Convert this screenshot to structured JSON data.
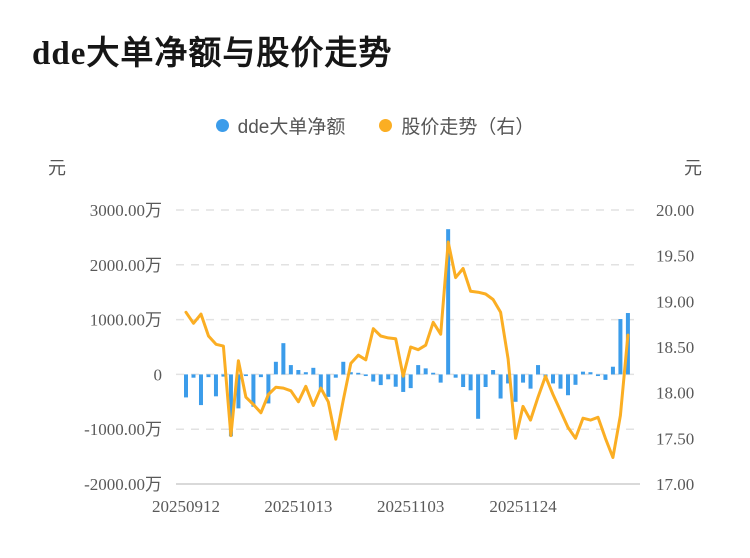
{
  "page": {
    "title": "dde大单净额与股价走势"
  },
  "legend": {
    "items": [
      {
        "label": "dde大单净额",
        "color": "#3b9cea",
        "marker": "circle"
      },
      {
        "label": "股价走势（右）",
        "color": "#fbae23",
        "marker": "circle"
      }
    ]
  },
  "axes": {
    "left_unit": "元",
    "right_unit": "元",
    "left_ticks": [
      "3000.00万",
      "2000.00万",
      "1000.00万",
      "0",
      "-1000.00万",
      "-2000.00万"
    ],
    "right_ticks": [
      "20.00",
      "19.50",
      "19.00",
      "18.50",
      "18.00",
      "17.50",
      "17.00"
    ],
    "x_ticks": [
      {
        "index": 0,
        "label": "20250912"
      },
      {
        "index": 15,
        "label": "20251013"
      },
      {
        "index": 30,
        "label": "20251103"
      },
      {
        "index": 45,
        "label": "20251124"
      }
    ]
  },
  "colors": {
    "bar": "#3b9cea",
    "line": "#fbae23",
    "grid": "#e2e2e2",
    "axis_line": "#d9d9d9",
    "tick_text": "#595959",
    "title_text": "#161616"
  },
  "chart_data": {
    "type": "bar+line dual-axis",
    "title": "dde大单净额与股价走势",
    "x_axis": "trading dates from 20250912 (labels every 15 sessions)",
    "left_axis": {
      "label": "元",
      "unit": "万 (10k yuan)",
      "range": [
        -2000,
        3000
      ],
      "grid": "dashed"
    },
    "right_axis": {
      "label": "元",
      "range": [
        17.0,
        20.0
      ]
    },
    "legend_position": "top-center",
    "series": [
      {
        "name": "dde大单净额",
        "type": "bar",
        "axis": "left",
        "unit": "万元",
        "values": [
          -420,
          -60,
          -560,
          -50,
          -400,
          -40,
          -1130,
          -620,
          -30,
          -590,
          -50,
          -530,
          230,
          570,
          170,
          80,
          40,
          120,
          -290,
          -410,
          -60,
          230,
          40,
          20,
          -30,
          -130,
          -195,
          -90,
          -225,
          -320,
          -250,
          170,
          110,
          30,
          -150,
          2650,
          -60,
          -230,
          -290,
          -810,
          -230,
          80,
          -440,
          -165,
          -500,
          -150,
          -260,
          170,
          -60,
          -165,
          -260,
          -380,
          -190,
          50,
          40,
          -30,
          -100,
          140,
          1010,
          1120
        ]
      },
      {
        "name": "股价走势",
        "type": "line",
        "axis": "right",
        "unit": "元",
        "values": [
          18.88,
          18.76,
          18.86,
          18.62,
          18.53,
          18.51,
          17.53,
          18.35,
          17.95,
          17.87,
          17.78,
          17.98,
          18.06,
          18.05,
          18.02,
          17.9,
          18.07,
          17.86,
          18.05,
          17.9,
          17.49,
          17.92,
          18.32,
          18.41,
          18.36,
          18.7,
          18.62,
          18.6,
          18.59,
          18.18,
          18.5,
          18.47,
          18.52,
          18.77,
          18.64,
          19.65,
          19.26,
          19.36,
          19.11,
          19.1,
          19.08,
          19.02,
          18.88,
          18.37,
          17.5,
          17.85,
          17.7,
          17.95,
          18.18,
          17.98,
          17.8,
          17.62,
          17.5,
          17.72,
          17.7,
          17.73,
          17.5,
          17.29,
          17.75,
          18.63
        ]
      }
    ]
  }
}
